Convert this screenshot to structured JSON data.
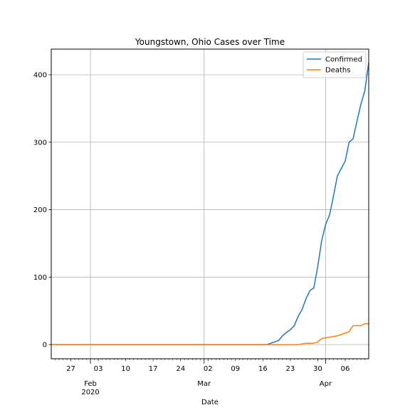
{
  "chart_data": {
    "type": "line",
    "title": "Youngstown, Ohio Cases over Time",
    "xlabel": "Date",
    "ylabel": "",
    "x_axis": {
      "type": "date",
      "range": [
        "2020-01-22",
        "2020-04-12"
      ],
      "major_ticks": [
        {
          "date": "2020-02-01",
          "label": "Feb",
          "sublabel": "2020"
        },
        {
          "date": "2020-03-01",
          "label": "Mar",
          "sublabel": ""
        },
        {
          "date": "2020-04-01",
          "label": "Apr",
          "sublabel": ""
        }
      ],
      "minor_ticks": [
        {
          "date": "2020-01-27",
          "label": "27"
        },
        {
          "date": "2020-02-03",
          "label": "03"
        },
        {
          "date": "2020-02-10",
          "label": "10"
        },
        {
          "date": "2020-02-17",
          "label": "17"
        },
        {
          "date": "2020-02-24",
          "label": "24"
        },
        {
          "date": "2020-03-02",
          "label": "02"
        },
        {
          "date": "2020-03-09",
          "label": "09"
        },
        {
          "date": "2020-03-16",
          "label": "16"
        },
        {
          "date": "2020-03-23",
          "label": "23"
        },
        {
          "date": "2020-03-30",
          "label": "30"
        },
        {
          "date": "2020-04-06",
          "label": "06"
        }
      ]
    },
    "y_axis": {
      "range": [
        -21,
        438
      ],
      "ticks": [
        0,
        100,
        200,
        300,
        400
      ]
    },
    "grid": true,
    "legend_position": "top-right",
    "series": [
      {
        "name": "Confirmed",
        "color": "#1f77b4",
        "points": [
          [
            "2020-01-22",
            0
          ],
          [
            "2020-03-17",
            0
          ],
          [
            "2020-03-18",
            2
          ],
          [
            "2020-03-19",
            4
          ],
          [
            "2020-03-20",
            6
          ],
          [
            "2020-03-21",
            13
          ],
          [
            "2020-03-22",
            18
          ],
          [
            "2020-03-23",
            22
          ],
          [
            "2020-03-24",
            28
          ],
          [
            "2020-03-25",
            42
          ],
          [
            "2020-03-26",
            52
          ],
          [
            "2020-03-27",
            68
          ],
          [
            "2020-03-28",
            80
          ],
          [
            "2020-03-29",
            84
          ],
          [
            "2020-03-30",
            116
          ],
          [
            "2020-03-31",
            154
          ],
          [
            "2020-04-01",
            178
          ],
          [
            "2020-04-02",
            192
          ],
          [
            "2020-04-03",
            220
          ],
          [
            "2020-04-04",
            250
          ],
          [
            "2020-04-05",
            261
          ],
          [
            "2020-04-06",
            272
          ],
          [
            "2020-04-07",
            300
          ],
          [
            "2020-04-08",
            305
          ],
          [
            "2020-04-09",
            331
          ],
          [
            "2020-04-10",
            356
          ],
          [
            "2020-04-11",
            376
          ],
          [
            "2020-04-12",
            418
          ]
        ]
      },
      {
        "name": "Deaths",
        "color": "#ff7f0e",
        "points": [
          [
            "2020-01-22",
            0
          ],
          [
            "2020-03-25",
            0
          ],
          [
            "2020-03-26",
            1
          ],
          [
            "2020-03-27",
            2
          ],
          [
            "2020-03-28",
            2
          ],
          [
            "2020-03-29",
            2
          ],
          [
            "2020-03-30",
            4
          ],
          [
            "2020-03-31",
            9
          ],
          [
            "2020-04-01",
            10
          ],
          [
            "2020-04-02",
            11
          ],
          [
            "2020-04-03",
            12
          ],
          [
            "2020-04-04",
            13
          ],
          [
            "2020-04-05",
            15
          ],
          [
            "2020-04-06",
            17
          ],
          [
            "2020-04-07",
            19
          ],
          [
            "2020-04-08",
            28
          ],
          [
            "2020-04-09",
            28
          ],
          [
            "2020-04-10",
            28
          ],
          [
            "2020-04-11",
            31
          ],
          [
            "2020-04-12",
            31
          ]
        ]
      }
    ]
  }
}
